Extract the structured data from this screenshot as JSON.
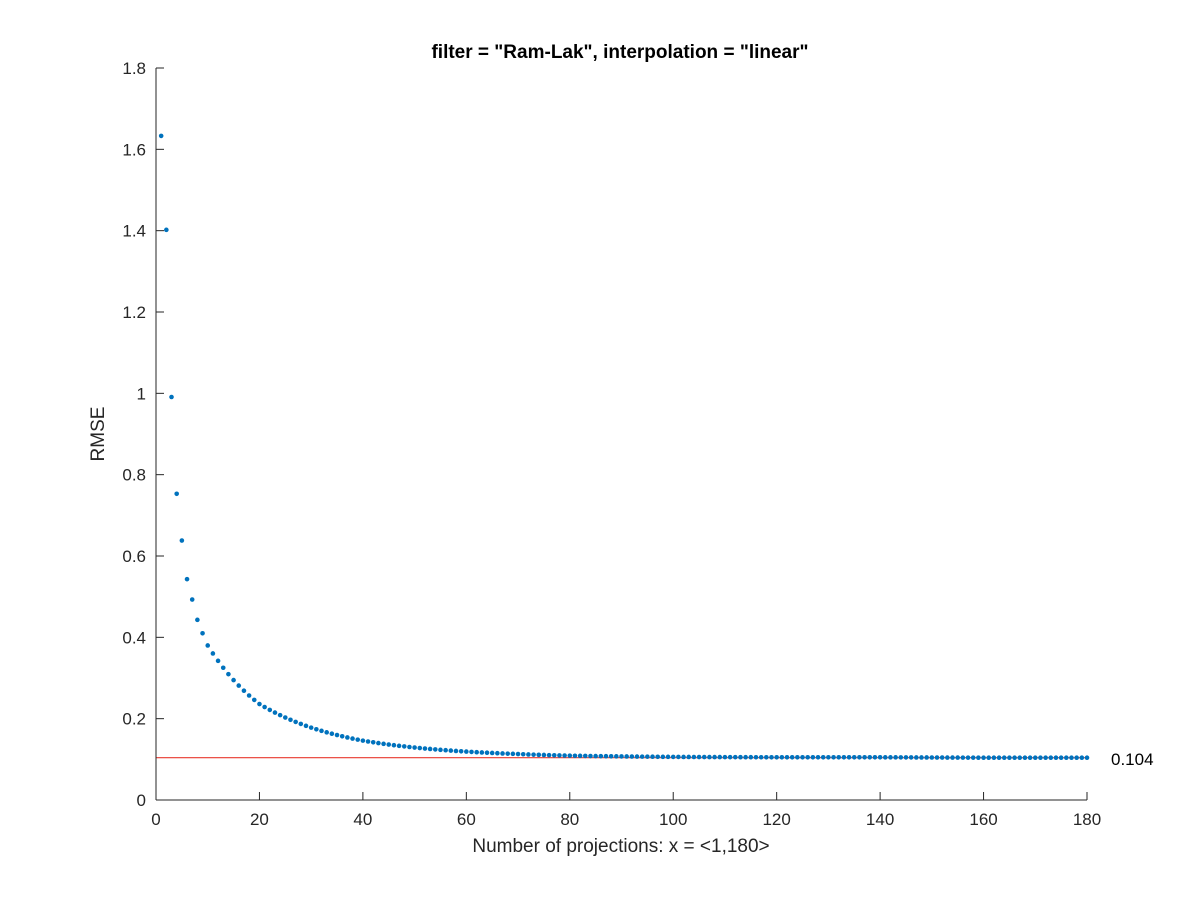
{
  "chart_data": {
    "type": "scatter",
    "title": "filter = \"Ram-Lak\", interpolation = \"linear\"",
    "xlabel": "Number of projections: x = <1,180>",
    "ylabel": "RMSE",
    "xlim": [
      0,
      180
    ],
    "ylim": [
      0,
      1.8
    ],
    "xticks": [
      "0",
      "20",
      "40",
      "60",
      "80",
      "100",
      "120",
      "140",
      "160",
      "180"
    ],
    "yticks": [
      "0",
      "0.2",
      "0.4",
      "0.6",
      "0.8",
      "1",
      "1.2",
      "1.4",
      "1.6",
      "1.8"
    ],
    "grid": false,
    "x_range": [
      1,
      180
    ],
    "sample_values": {
      "1": 1.633,
      "2": 1.402,
      "3": 0.991,
      "4": 0.753,
      "5": 0.638,
      "6": 0.543,
      "7": 0.493,
      "8": 0.443,
      "9": 0.41,
      "10": 0.38,
      "20": 0.236,
      "30": 0.178,
      "40": 0.146,
      "50": 0.129,
      "60": 0.119,
      "70": 0.113,
      "80": 0.109,
      "100": 0.106,
      "120": 0.105,
      "140": 0.105,
      "160": 0.104,
      "180": 0.104
    },
    "reference_line": {
      "value": 0.104,
      "label": "0.104",
      "color": "#e8392f"
    },
    "marker_color": "#0072bd"
  }
}
